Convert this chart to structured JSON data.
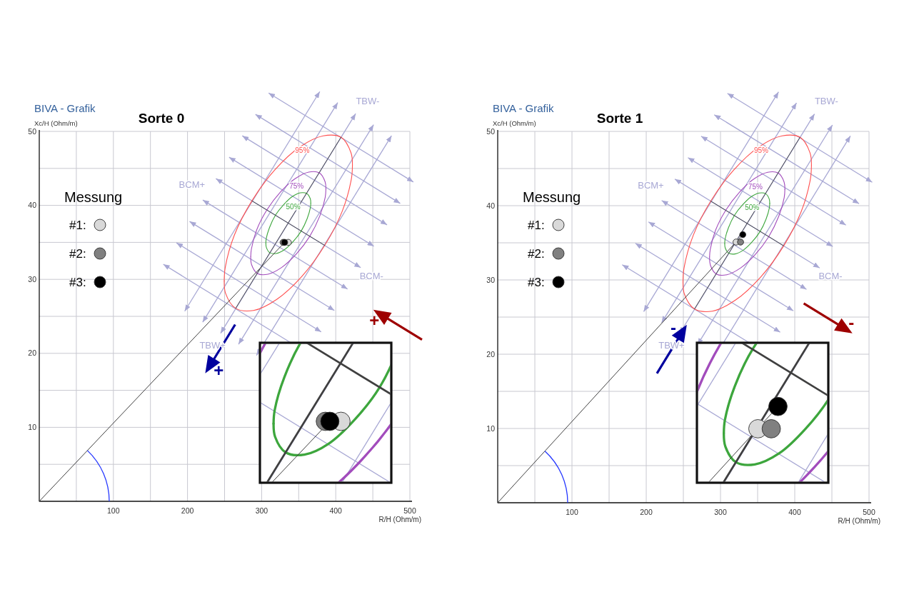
{
  "chart_data": [
    {
      "type": "scatter",
      "title": "Sorte 0",
      "subtitle": "BIVA - Grafik",
      "xlabel": "R/H (Ohm/m)",
      "ylabel": "Xc/H (Ohm/m)",
      "xlim": [
        0,
        500
      ],
      "ylim": [
        0,
        50
      ],
      "xticks": [
        {
          "value": 50,
          "label": null
        },
        100,
        {
          "value": 150,
          "label": null
        },
        200,
        {
          "value": 250,
          "label": null
        },
        300,
        {
          "value": 350,
          "label": null
        },
        400,
        {
          "value": 450,
          "label": null
        },
        500
      ],
      "yticks": [
        {
          "value": 5,
          "label": null
        },
        10,
        {
          "value": 15,
          "label": null
        },
        20,
        {
          "value": 25,
          "label": null
        },
        30,
        {
          "value": 35,
          "label": null
        },
        40,
        {
          "value": 45,
          "label": null
        },
        50
      ],
      "grid": true,
      "legend": "top left",
      "legend_title": "Messung",
      "marker": "circle",
      "annotations": [
        "TBW-",
        "TBW+",
        "BCM+",
        "BCM-",
        "+",
        "+"
      ],
      "series": [
        {
          "name": "95%",
          "type": "line",
          "marker": "none",
          "color": "#ff4f4f",
          "x": [
            249.5,
            250.9,
            263.3,
            286.8,
            317.8,
            351.6,
            383,
            407.2,
            420.6,
            422.5
          ],
          "values": [
            29.8,
            31.6,
            36,
            40.6,
            44.8,
            47.9,
            49.4,
            49.2,
            47.1,
            45.4
          ]
        },
        {
          "type": "line",
          "marker": "none",
          "color": "#ff4f4f",
          "x": [
            249.5,
            251.4,
            264.8,
            289.1,
            320.4,
            354.2,
            385.2,
            408.7,
            421.1,
            422.5
          ],
          "values": [
            29.8,
            28.1,
            26.1,
            25.8,
            27.3,
            30.4,
            34.6,
            39.2,
            43.6,
            45.4
          ]
        },
        {
          "name": "75%",
          "type": "line",
          "marker": "none",
          "color": "#a24cbc",
          "x": [
            285.3,
            286.2,
            293.4,
            307.2,
            325.4,
            345.1,
            363.5,
            377.7,
            385.6,
            386.7
          ],
          "values": [
            33.1,
            34.1,
            36.7,
            39.4,
            41.8,
            43.6,
            44.5,
            44.4,
            43.2,
            42.2
          ]
        },
        {
          "type": "line",
          "marker": "none",
          "color": "#a24cbc",
          "x": [
            285.3,
            286.4,
            294.3,
            308.5,
            326.9,
            346.6,
            364.8,
            378.6,
            385.8,
            386.7
          ],
          "values": [
            33.1,
            32,
            30.8,
            30.7,
            31.6,
            33.4,
            35.8,
            38.6,
            41.1,
            42.2
          ]
        },
        {
          "name": "50%",
          "type": "line",
          "marker": "none",
          "color": "#3da63d",
          "x": [
            305.7,
            306.2,
            310.6,
            318.8,
            329.7,
            341.4,
            352.4,
            360.9,
            365.6,
            366.3
          ],
          "values": [
            34.9,
            35.5,
            37,
            38.7,
            40.1,
            41.2,
            41.7,
            41.6,
            40.9,
            40.3
          ]
        },
        {
          "type": "line",
          "marker": "none",
          "color": "#3da63d",
          "x": [
            305.7,
            306.4,
            311.1,
            319.6,
            330.6,
            342.4,
            353.2,
            361.4,
            365.8,
            366.3
          ],
          "values": [
            34.9,
            34.3,
            33.6,
            33.5,
            34,
            35.1,
            36.5,
            38.2,
            39.7,
            40.3
          ]
        },
        {
          "type": "line",
          "marker": "none",
          "color": "#404040",
          "x": [
            265,
            407
          ],
          "values": [
            26.1,
            49.2
          ]
        },
        {
          "type": "line",
          "marker": "none",
          "color": "#404040",
          "x": [
            287,
            385
          ],
          "values": [
            40.6,
            34.6
          ]
        },
        {
          "type": "line",
          "marker": "none",
          "color": "#404040",
          "x": [
            0,
            331
          ],
          "values": [
            0,
            35
          ]
        },
        {
          "name": "#1:",
          "color": "#d9d9d9",
          "x": [
            336
          ],
          "values": [
            35
          ]
        },
        {
          "name": "#2:",
          "color": "#808080",
          "x": [
            329
          ],
          "values": [
            35
          ]
        },
        {
          "name": "#3:",
          "color": "#000000",
          "x": [
            331
          ],
          "values": [
            35
          ]
        }
      ]
    },
    {
      "type": "scatter",
      "title": "Sorte 1",
      "subtitle": "BIVA - Grafik",
      "xlabel": "R/H (Ohm/m)",
      "ylabel": "Xc/H (Ohm/m)",
      "xlim": [
        0,
        500
      ],
      "ylim": [
        0,
        50
      ],
      "xticks": [
        {
          "value": 50,
          "label": null
        },
        100,
        {
          "value": 150,
          "label": null
        },
        200,
        {
          "value": 250,
          "label": null
        },
        300,
        {
          "value": 350,
          "label": null
        },
        400,
        {
          "value": 450,
          "label": null
        },
        500
      ],
      "yticks": [
        {
          "value": 5,
          "label": null
        },
        10,
        {
          "value": 15,
          "label": null
        },
        20,
        {
          "value": 25,
          "label": null
        },
        30,
        {
          "value": 35,
          "label": null
        },
        40,
        {
          "value": 45,
          "label": null
        },
        50
      ],
      "grid": true,
      "legend": "top left",
      "legend_title": "Messung",
      "marker": "circle",
      "annotations": [
        "TBW-",
        "TBW+",
        "BCM+",
        "BCM-",
        "-",
        "-"
      ],
      "series": [
        {
          "name": "95%",
          "type": "line",
          "marker": "none",
          "color": "#ff4f4f",
          "x": [
            249.5,
            250.9,
            263.3,
            286.8,
            317.8,
            351.6,
            383,
            407.2,
            420.6,
            422.5
          ],
          "values": [
            29.8,
            31.6,
            36,
            40.6,
            44.8,
            47.9,
            49.4,
            49.2,
            47.1,
            45.4
          ]
        },
        {
          "type": "line",
          "marker": "none",
          "color": "#ff4f4f",
          "x": [
            249.5,
            251.4,
            264.8,
            289.1,
            320.4,
            354.2,
            385.2,
            408.7,
            421.1,
            422.5
          ],
          "values": [
            29.8,
            28.1,
            26.1,
            25.8,
            27.3,
            30.4,
            34.6,
            39.2,
            43.6,
            45.4
          ]
        },
        {
          "name": "75%",
          "type": "line",
          "marker": "none",
          "color": "#a24cbc",
          "x": [
            285.3,
            286.2,
            293.4,
            307.2,
            325.4,
            345.1,
            363.5,
            377.7,
            385.6,
            386.7
          ],
          "values": [
            33.1,
            34.1,
            36.7,
            39.4,
            41.8,
            43.6,
            44.5,
            44.4,
            43.2,
            42.2
          ]
        },
        {
          "type": "line",
          "marker": "none",
          "color": "#a24cbc",
          "x": [
            285.3,
            286.4,
            294.3,
            308.5,
            326.9,
            346.6,
            364.8,
            378.6,
            385.8,
            386.7
          ],
          "values": [
            33.1,
            32,
            30.8,
            30.7,
            31.6,
            33.4,
            35.8,
            38.6,
            41.1,
            42.2
          ]
        },
        {
          "name": "50%",
          "type": "line",
          "marker": "none",
          "color": "#3da63d",
          "x": [
            305.7,
            306.2,
            310.6,
            318.8,
            329.7,
            341.4,
            352.4,
            360.9,
            365.6,
            366.3
          ],
          "values": [
            34.9,
            35.5,
            37,
            38.7,
            40.1,
            41.2,
            41.7,
            41.6,
            40.9,
            40.3
          ]
        },
        {
          "type": "line",
          "marker": "none",
          "color": "#3da63d",
          "x": [
            305.7,
            306.4,
            311.1,
            319.6,
            330.6,
            342.4,
            353.2,
            361.4,
            365.8,
            366.3
          ],
          "values": [
            34.9,
            34.3,
            33.6,
            33.5,
            34,
            35.1,
            36.5,
            38.2,
            39.7,
            40.3
          ]
        },
        {
          "type": "line",
          "marker": "none",
          "color": "#404040",
          "x": [
            265,
            407
          ],
          "values": [
            26.1,
            49.2
          ]
        },
        {
          "type": "line",
          "marker": "none",
          "color": "#404040",
          "x": [
            287,
            385
          ],
          "values": [
            40.6,
            34.6
          ]
        },
        {
          "type": "line",
          "marker": "none",
          "color": "#404040",
          "x": [
            0,
            330
          ],
          "values": [
            0,
            36.1
          ]
        },
        {
          "name": "#1:",
          "color": "#d9d9d9",
          "x": [
            321
          ],
          "values": [
            35.1
          ]
        },
        {
          "name": "#2:",
          "color": "#808080",
          "x": [
            327
          ],
          "values": [
            35.1
          ]
        },
        {
          "name": "#3:",
          "color": "#000000",
          "x": [
            330
          ],
          "values": [
            36.1
          ]
        }
      ]
    }
  ]
}
